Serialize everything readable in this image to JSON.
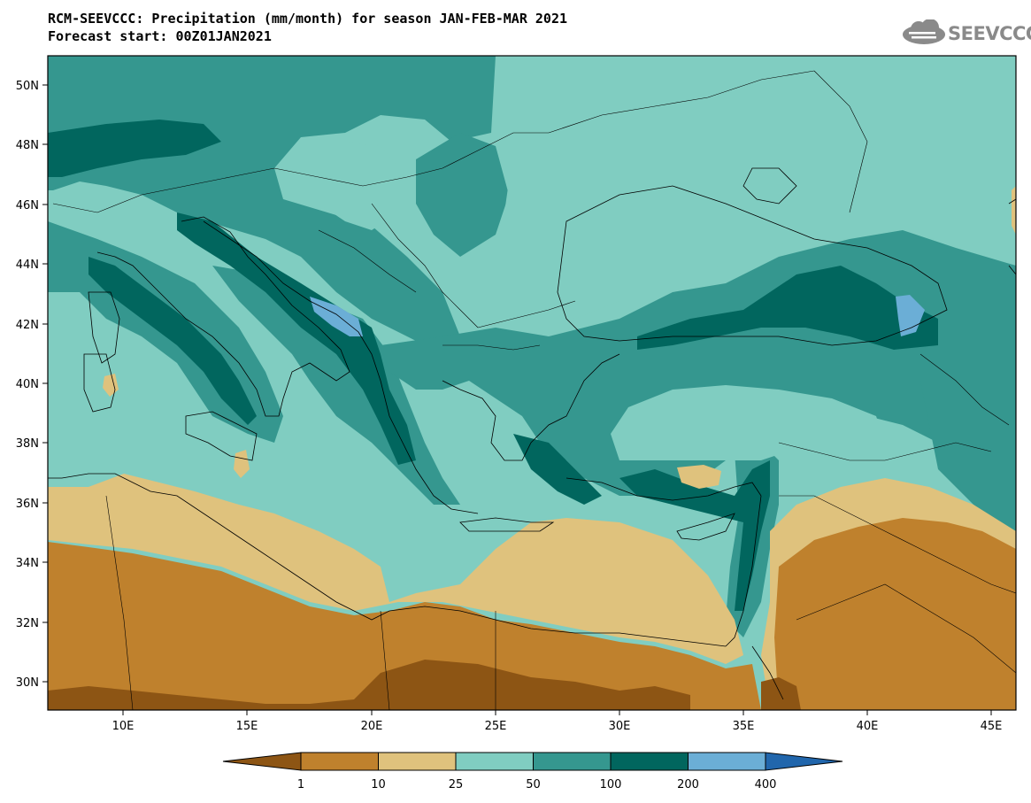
{
  "header": {
    "title": "RCM-SEEVCCC: Precipitation (mm/month) for season JAN-FEB-MAR 2021",
    "subtitle": "Forecast start: 00Z01JAN2021",
    "logo_text": "SEEVCCC"
  },
  "map": {
    "variable": "Precipitation",
    "units": "mm/month",
    "region": "Eastern Mediterranean / Balkans / Black Sea",
    "lon_range": [
      7,
      46
    ],
    "lat_range": [
      29,
      51
    ],
    "x_ticks": [
      "10E",
      "15E",
      "20E",
      "25E",
      "30E",
      "35E",
      "40E",
      "45E"
    ],
    "y_ticks": [
      "30N",
      "32N",
      "34N",
      "36N",
      "38N",
      "40N",
      "42N",
      "44N",
      "46N",
      "48N",
      "50N"
    ],
    "colors": {
      "c_lt1": "#8d5514",
      "c_1_10": "#bf812d",
      "c_10_25": "#dfc27d",
      "c_25_50": "#80cdc1",
      "c_50_100": "#35978f",
      "c_100_200": "#01665e",
      "c_200_400": "#6baed6",
      "c_gt400": "#2166ac"
    }
  },
  "legend": {
    "labels": [
      "1",
      "10",
      "25",
      "50",
      "100",
      "200",
      "400"
    ]
  }
}
